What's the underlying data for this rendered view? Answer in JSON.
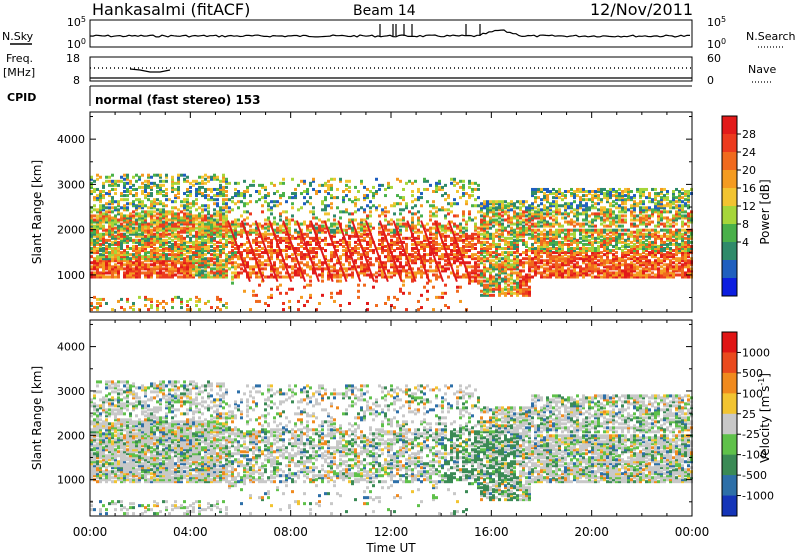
{
  "header": {
    "station": "Hankasalmi (fitACF)",
    "beam": "Beam 14",
    "date": "12/Nov/2011"
  },
  "strip_labels": {
    "nsky": "N.Sky",
    "nsearch": "N.Search",
    "freq": "Freq.",
    "freq_unit": "[MHz]",
    "nave": "Nave",
    "cpid": "CPID",
    "cpid_value": "normal (fast stereo) 153"
  },
  "strip_ticks": {
    "noise_left": [
      "10^5",
      "10^0"
    ],
    "noise_right": [
      "10^5",
      "10^0"
    ],
    "freq_left": [
      "18",
      "8"
    ],
    "nave_right": [
      "60",
      "0"
    ]
  },
  "chart_data": [
    {
      "type": "heatmap",
      "name": "power",
      "ylabel": "Slant Range [km]",
      "xlabel": "Time UT",
      "x_ticks": [
        "00:00",
        "04:00",
        "08:00",
        "12:00",
        "16:00",
        "20:00",
        "00:00"
      ],
      "xlim_hours": [
        0,
        24
      ],
      "y_ticks": [
        1000,
        2000,
        3000,
        4000
      ],
      "ylim": [
        180,
        4600
      ],
      "colorbar": {
        "label": "Power [dB]",
        "ticks": [
          "28",
          "24",
          "20",
          "16",
          "12",
          "8",
          "4"
        ],
        "colors": [
          "#0c1ee0",
          "#1f5fbf",
          "#2f8a6a",
          "#49b04a",
          "#a6d63a",
          "#f2c431",
          "#f49b21",
          "#f06a1e",
          "#ec3a1e",
          "#e21a1a"
        ]
      }
    },
    {
      "type": "heatmap",
      "name": "velocity",
      "ylabel": "Slant Range [km]",
      "xlabel": "Time UT",
      "x_ticks": [
        "00:00",
        "04:00",
        "08:00",
        "12:00",
        "16:00",
        "20:00",
        "00:00"
      ],
      "xlim_hours": [
        0,
        24
      ],
      "y_ticks": [
        1000,
        2000,
        3000,
        4000
      ],
      "ylim": [
        180,
        4600
      ],
      "colorbar": {
        "label": "Velocity [m s^-1]",
        "ticks": [
          "1000",
          "500",
          "100",
          "25",
          "-25",
          "-100",
          "-500",
          "-1000"
        ],
        "colors": [
          "#1535b8",
          "#2d6fa8",
          "#3a8a55",
          "#5fc14a",
          "#c8c8c8",
          "#f2c431",
          "#f08a1e",
          "#ea4a1e",
          "#e01515"
        ]
      }
    }
  ]
}
